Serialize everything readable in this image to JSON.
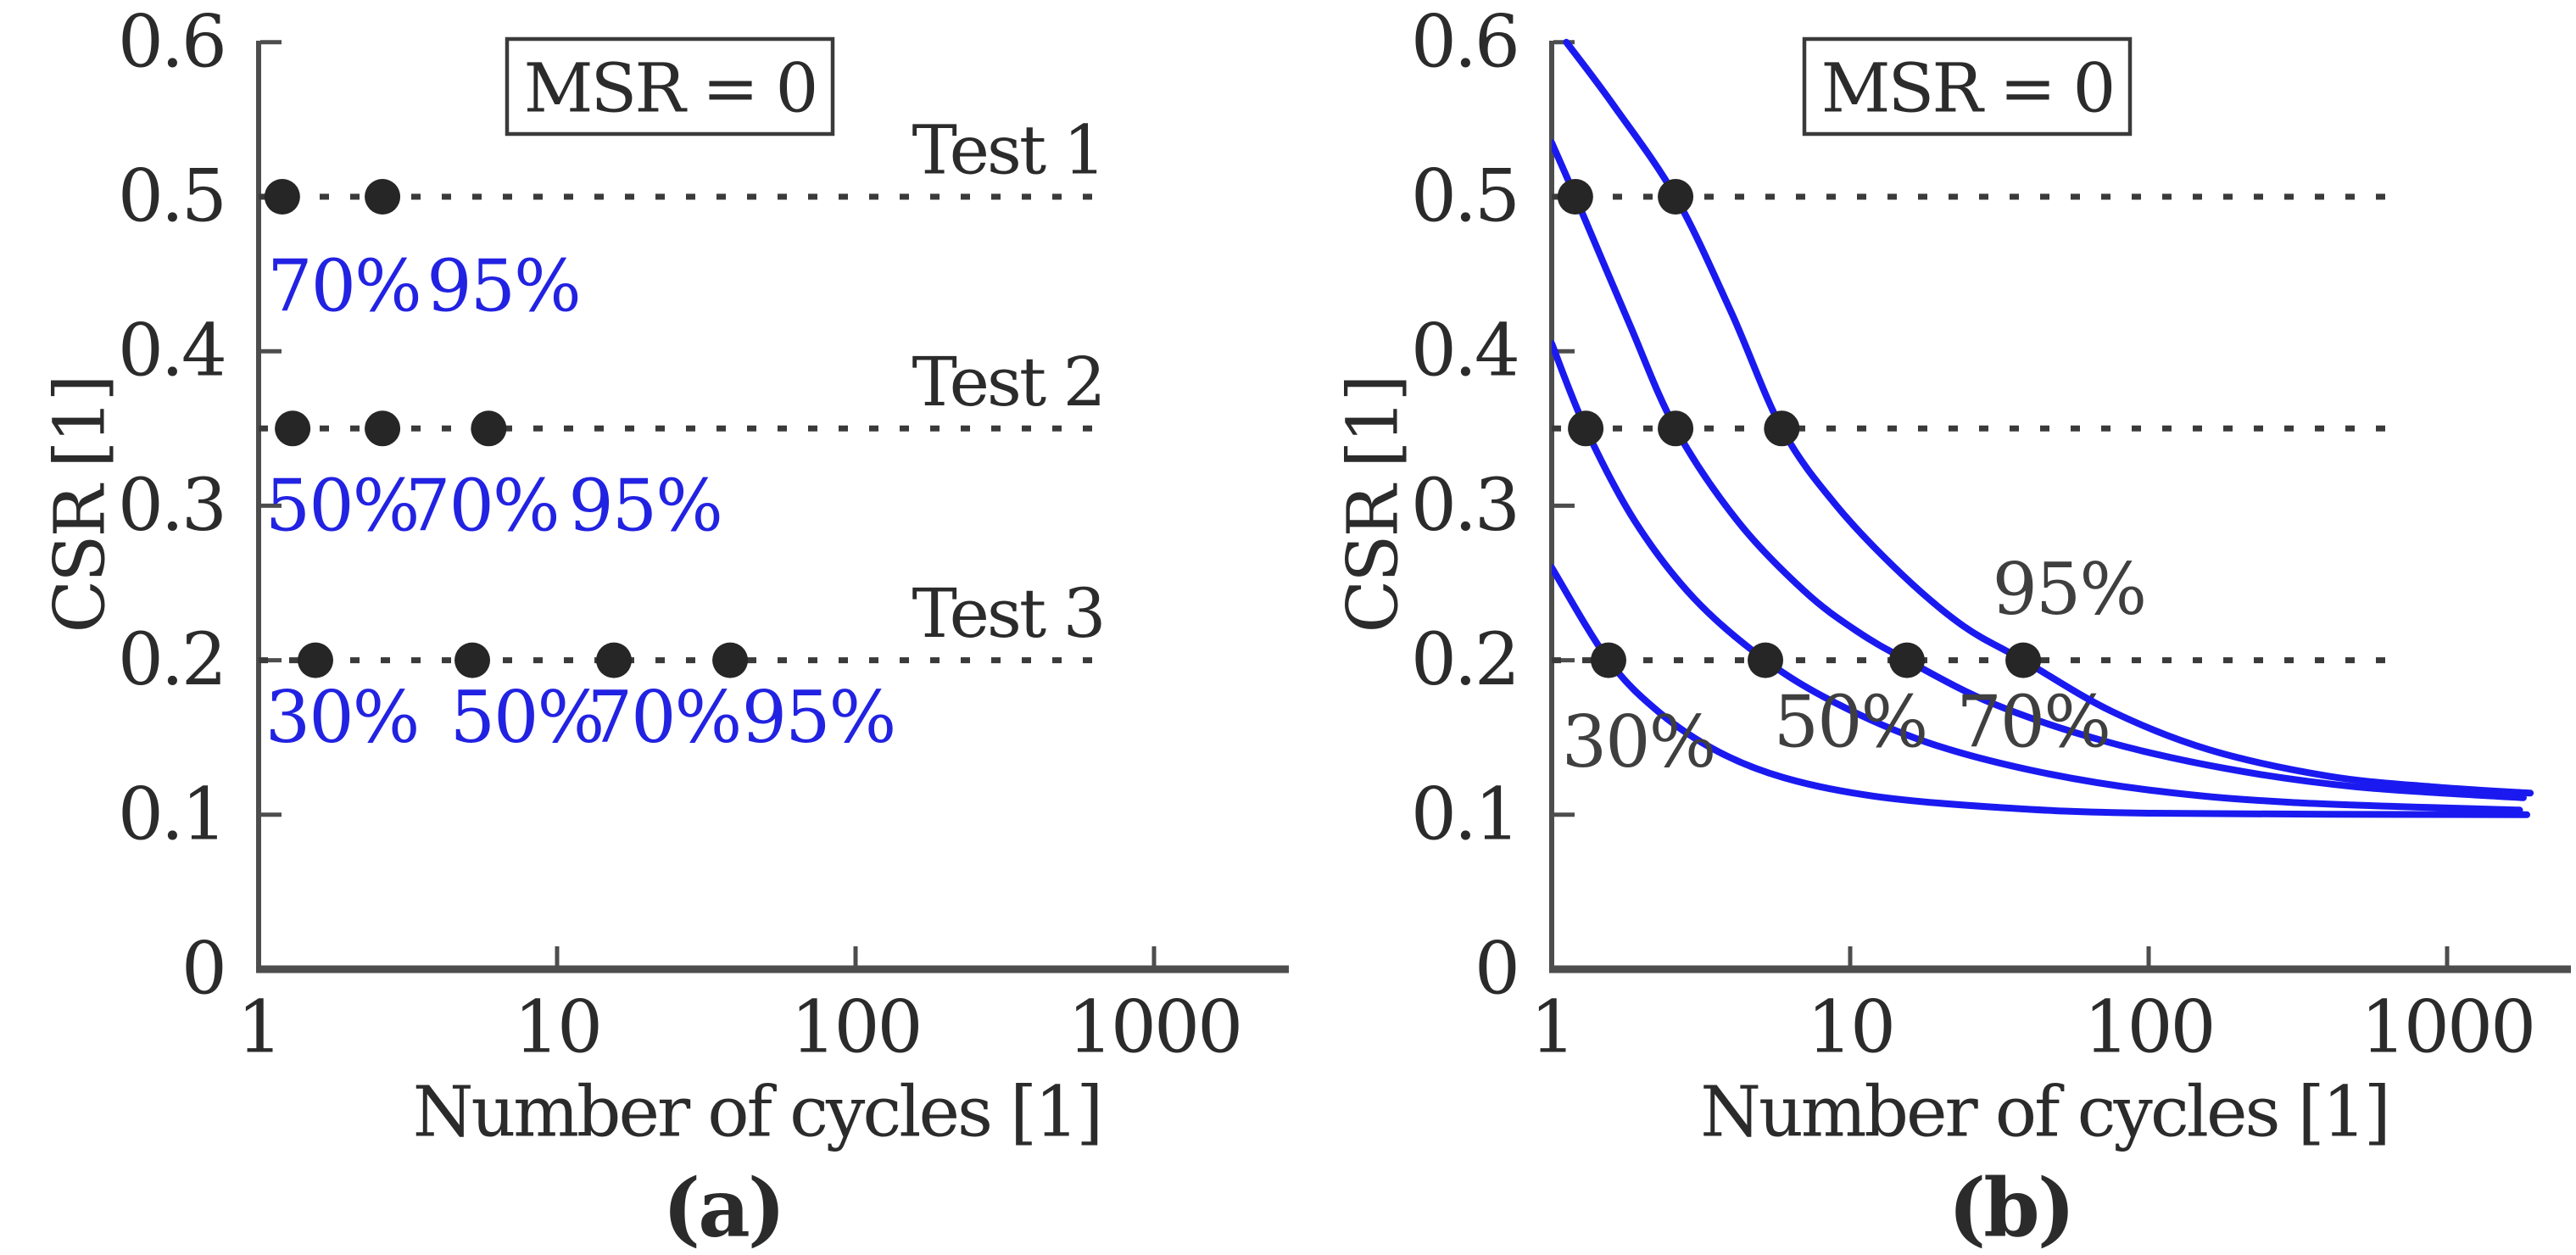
{
  "colors": {
    "background": "#ffffff",
    "axis": "#4d4d4d",
    "text": "#2b2b2b",
    "marker": "#262626",
    "dotted_line": "#3a3a3a",
    "curve_blue": "#1a1af0",
    "percent_label_blue": "#2222e2",
    "percent_label_gray": "#3f3f3f"
  },
  "chart_data": [
    {
      "id": "a",
      "type": "scatter",
      "caption": "(a)",
      "annotation_box": "MSR = 0",
      "xlabel": "Number of cycles [1]",
      "ylabel": "CSR [1]",
      "xscale": "log",
      "xlim": [
        1,
        2600
      ],
      "ylim": [
        0,
        0.6
      ],
      "xticks": [
        1,
        10,
        100,
        1000
      ],
      "xtick_labels": [
        "1",
        "10",
        "100",
        "1000"
      ],
      "yticks": [
        0,
        0.1,
        0.2,
        0.3,
        0.4,
        0.5,
        0.6
      ],
      "ytick_labels": [
        "0",
        "0.1",
        "0.2",
        "0.3",
        "0.4",
        "0.5",
        "0.6"
      ],
      "test_lines": [
        {
          "label": "Test 1",
          "csr": 0.5,
          "n_start": 1,
          "n_end": 700
        },
        {
          "label": "Test 2",
          "csr": 0.35,
          "n_start": 1,
          "n_end": 700
        },
        {
          "label": "Test 3",
          "csr": 0.2,
          "n_start": 1,
          "n_end": 700
        }
      ],
      "points": [
        {
          "n": 1.2,
          "csr": 0.5
        },
        {
          "n": 2.6,
          "csr": 0.5
        },
        {
          "n": 1.3,
          "csr": 0.35
        },
        {
          "n": 2.6,
          "csr": 0.35
        },
        {
          "n": 5.9,
          "csr": 0.35
        },
        {
          "n": 1.55,
          "csr": 0.2
        },
        {
          "n": 5.2,
          "csr": 0.2
        },
        {
          "n": 15.5,
          "csr": 0.2
        },
        {
          "n": 38,
          "csr": 0.2
        }
      ],
      "point_labels": [
        {
          "text": "70%",
          "n": 1.93,
          "csr": 0.442
        },
        {
          "text": "95%",
          "n": 6.6,
          "csr": 0.442
        },
        {
          "text": "50%",
          "n": 1.9,
          "csr": 0.3
        },
        {
          "text": "70%",
          "n": 5.6,
          "csr": 0.3
        },
        {
          "text": "95%",
          "n": 19.7,
          "csr": 0.3
        },
        {
          "text": "30%",
          "n": 1.9,
          "csr": 0.163
        },
        {
          "text": "50%",
          "n": 7.9,
          "csr": 0.163
        },
        {
          "text": "70%",
          "n": 22.8,
          "csr": 0.163
        },
        {
          "text": "95%",
          "n": 75,
          "csr": 0.163
        }
      ],
      "curves": []
    },
    {
      "id": "b",
      "type": "line",
      "caption": "(b)",
      "annotation_box": "MSR = 0",
      "xlabel": "Number of cycles [1]",
      "ylabel": "CSR [1]",
      "xscale": "log",
      "xlim": [
        1,
        2600
      ],
      "ylim": [
        0,
        0.6
      ],
      "xticks": [
        1,
        10,
        100,
        1000
      ],
      "xtick_labels": [
        "1",
        "10",
        "100",
        "1000"
      ],
      "yticks": [
        0,
        0.1,
        0.2,
        0.3,
        0.4,
        0.5,
        0.6
      ],
      "ytick_labels": [
        "0",
        "0.1",
        "0.2",
        "0.3",
        "0.4",
        "0.5",
        "0.6"
      ],
      "test_lines": [
        {
          "label": "",
          "csr": 0.5,
          "n_start": 1,
          "n_end": 700
        },
        {
          "label": "",
          "csr": 0.35,
          "n_start": 1,
          "n_end": 700
        },
        {
          "label": "",
          "csr": 0.2,
          "n_start": 1,
          "n_end": 700
        }
      ],
      "points": [
        {
          "n": 1.2,
          "csr": 0.5
        },
        {
          "n": 2.6,
          "csr": 0.5
        },
        {
          "n": 1.3,
          "csr": 0.35
        },
        {
          "n": 2.6,
          "csr": 0.35
        },
        {
          "n": 5.9,
          "csr": 0.35
        },
        {
          "n": 1.55,
          "csr": 0.2
        },
        {
          "n": 5.2,
          "csr": 0.2
        },
        {
          "n": 15.5,
          "csr": 0.2
        },
        {
          "n": 38,
          "csr": 0.2
        }
      ],
      "point_labels": [],
      "curves": [
        {
          "label": {
            "text": "30%",
            "n": 1.95,
            "csr": 0.147
          },
          "anchors": [
            [
              1.0,
              0.26
            ],
            [
              1.55,
              0.2
            ],
            [
              2.3,
              0.166
            ],
            [
              3.6,
              0.141
            ],
            [
              6,
              0.124
            ],
            [
              12,
              0.112
            ],
            [
              30,
              0.105
            ],
            [
              100,
              0.101
            ],
            [
              1850,
              0.1
            ]
          ]
        },
        {
          "label": {
            "text": "50%",
            "n": 10,
            "csr": 0.16
          },
          "anchors": [
            [
              1.0,
              0.405
            ],
            [
              1.3,
              0.35
            ],
            [
              1.9,
              0.29
            ],
            [
              3,
              0.24
            ],
            [
              5.2,
              0.2
            ],
            [
              9,
              0.172
            ],
            [
              18,
              0.147
            ],
            [
              40,
              0.129
            ],
            [
              100,
              0.116
            ],
            [
              300,
              0.108
            ],
            [
              1750,
              0.103
            ]
          ]
        },
        {
          "label": {
            "text": "70%",
            "n": 41,
            "csr": 0.16
          },
          "anchors": [
            [
              1.0,
              0.535
            ],
            [
              1.2,
              0.5
            ],
            [
              1.8,
              0.42
            ],
            [
              2.6,
              0.35
            ],
            [
              4.2,
              0.29
            ],
            [
              7,
              0.245
            ],
            [
              10.5,
              0.219
            ],
            [
              15.5,
              0.2
            ],
            [
              30,
              0.172
            ],
            [
              70,
              0.148
            ],
            [
              180,
              0.13
            ],
            [
              500,
              0.118
            ],
            [
              1800,
              0.111
            ]
          ]
        },
        {
          "label": {
            "text": "95%",
            "n": 54,
            "csr": 0.246
          },
          "anchors": [
            [
              1.12,
              0.6
            ],
            [
              1.6,
              0.56
            ],
            [
              2.6,
              0.5
            ],
            [
              4.0,
              0.425
            ],
            [
              5.9,
              0.35
            ],
            [
              9,
              0.3
            ],
            [
              15,
              0.255
            ],
            [
              24,
              0.222
            ],
            [
              38,
              0.2
            ],
            [
              75,
              0.167
            ],
            [
              160,
              0.142
            ],
            [
              400,
              0.125
            ],
            [
              900,
              0.118
            ],
            [
              1900,
              0.114
            ]
          ]
        }
      ]
    }
  ]
}
